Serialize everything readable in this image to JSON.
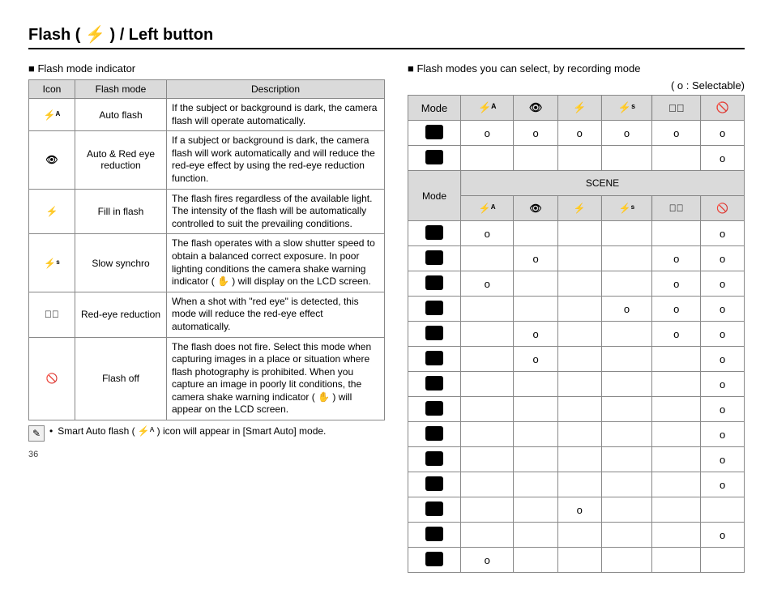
{
  "title_parts": {
    "a": "Flash ( ",
    "b": " ) / Left button"
  },
  "left": {
    "subhead": "Flash mode indicator",
    "headers": {
      "icon": "Icon",
      "mode": "Flash mode",
      "desc": "Description"
    },
    "rows": [
      {
        "icon": "⚡ᴬ",
        "mode": "Auto flash",
        "desc": "If the subject or background is dark, the camera flash will operate automatically."
      },
      {
        "icon": "👁",
        "mode": "Auto & Red eye reduction",
        "desc": "If a subject or background is dark, the camera flash will work automatically and will reduce the red-eye effect by using the red-eye reduction function."
      },
      {
        "icon": "⚡",
        "mode": "Fill in flash",
        "desc": "The flash fires regardless of the available light. The intensity of the flash will be automatically controlled to suit the prevailing conditions."
      },
      {
        "icon": "⚡ˢ",
        "mode": "Slow synchro",
        "desc": "The flash operates with a slow shutter speed to obtain a balanced correct exposure. In poor lighting conditions the camera shake warning indicator ( ✋ ) will display on the LCD screen."
      },
      {
        "icon": "👁⃠",
        "mode": "Red-eye reduction",
        "desc": "When a shot with \"red eye\" is detected, this mode will reduce the red-eye effect automatically."
      },
      {
        "icon": "🚫",
        "mode": "Flash off",
        "desc": "The flash does not fire.\nSelect this mode when capturing images in a place or situation where flash photography is prohibited. When you capture an image in poorly lit conditions, the camera shake warning indicator ( ✋ ) will appear on the LCD screen."
      }
    ],
    "note": "Smart Auto flash ( ⚡ᴬ ) icon will appear in [Smart Auto] mode."
  },
  "right": {
    "subhead": "Flash modes you can select, by recording mode",
    "legend": "( o : Selectable)",
    "mode_label": "Mode",
    "scene_label": "SCENE",
    "col_icons": [
      "⚡ᴬ",
      "👁",
      "⚡",
      "⚡ˢ",
      "👁⃠",
      "🚫"
    ],
    "top_rows": [
      [
        "o",
        "o",
        "o",
        "o",
        "o",
        "o"
      ],
      [
        "",
        "",
        "",
        "",
        "",
        "o"
      ]
    ],
    "scene_rows": [
      [
        "o",
        "",
        "",
        "",
        "",
        "o"
      ],
      [
        "",
        "o",
        "",
        "",
        "o",
        "o"
      ],
      [
        "o",
        "",
        "",
        "",
        "o",
        "o"
      ],
      [
        "",
        "",
        "",
        "o",
        "o",
        "o"
      ],
      [
        "",
        "o",
        "",
        "",
        "o",
        "o"
      ],
      [
        "",
        "o",
        "",
        "",
        "",
        "o"
      ],
      [
        "",
        "",
        "",
        "",
        "",
        "o"
      ],
      [
        "",
        "",
        "",
        "",
        "",
        "o"
      ],
      [
        "",
        "",
        "",
        "",
        "",
        "o"
      ],
      [
        "",
        "",
        "",
        "",
        "",
        "o"
      ],
      [
        "",
        "",
        "",
        "",
        "",
        "o"
      ],
      [
        "",
        "",
        "o",
        "",
        "",
        ""
      ],
      [
        "",
        "",
        "",
        "",
        "",
        "o"
      ],
      [
        "o",
        "",
        "",
        "",
        "",
        ""
      ]
    ]
  },
  "page_number": "36"
}
